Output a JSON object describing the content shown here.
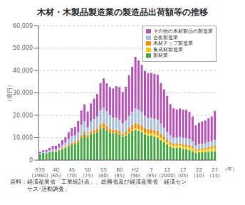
{
  "chart_data": {
    "type": "bar",
    "title": "木材・木製品製造業の製造品出荷額等の推移",
    "ylabel": "（億円）",
    "xlabel": "（年）",
    "annotations": [
      "資料：経済産業省「工業統計表」、総務省及び経済産業省「経済セン\n　　　サス･活動調査」"
    ],
    "stacked": true,
    "grid": true,
    "legend": "upper right",
    "categories": [
      "S35\n(1960)",
      null,
      null,
      null,
      null,
      "40\n(65)",
      null,
      null,
      null,
      null,
      "45\n(70)",
      null,
      null,
      null,
      null,
      "50\n(75)",
      null,
      null,
      null,
      null,
      "55\n(80)",
      null,
      null,
      null,
      null,
      "60\n(85)",
      null,
      null,
      null,
      null,
      "H2\n(90)",
      null,
      null,
      null,
      null,
      "7\n(95)",
      null,
      null,
      null,
      null,
      "12\n(2000)",
      null,
      null,
      null,
      null,
      "17\n(05)",
      null,
      null,
      null,
      null,
      "22\n(10)",
      null,
      null,
      null,
      null,
      "27\n(15)"
    ],
    "ylim": [
      0,
      60000
    ],
    "yticks": [
      0,
      {
        "value": 10000,
        "label": "10,000"
      },
      {
        "value": 20000,
        "label": "20,000"
      },
      {
        "value": 30000,
        "label": "30,000"
      },
      {
        "value": 40000,
        "label": "40,000"
      },
      {
        "value": 50000,
        "label": "50,000"
      },
      {
        "value": 60000,
        "label": "60,000"
      }
    ],
    "series": [
      {
        "name": "製材業",
        "color": "#44aa44",
        "values": [
          2800,
          3200,
          3100,
          3500,
          3800,
          3700,
          4100,
          4800,
          5300,
          6200,
          7000,
          7200,
          8000,
          10000,
          11500,
          10000,
          11500,
          12000,
          12500,
          14000,
          14500,
          13500,
          12500,
          12000,
          12000,
          11500,
          10500,
          11000,
          12000,
          13000,
          13500,
          13000,
          12500,
          11500,
          11000,
          11000,
          10500,
          10000,
          9000,
          8000,
          7000,
          6000,
          5500,
          5500,
          5500,
          5000,
          4800,
          4500,
          4000,
          3200,
          3500,
          3500,
          3500,
          3800,
          3800,
          4000
        ]
      },
      {
        "name": "集成材製造業",
        "color": "#ffcc00",
        "values": [
          0,
          0,
          0,
          0,
          0,
          0,
          0,
          0,
          0,
          0,
          0,
          0,
          0,
          0,
          0,
          0,
          0,
          0,
          0,
          0,
          0,
          0,
          0,
          0,
          0,
          100,
          150,
          200,
          300,
          400,
          600,
          700,
          800,
          800,
          800,
          900,
          1000,
          1100,
          1100,
          1000,
          1000,
          1000,
          1000,
          1000,
          1100,
          1100,
          1100,
          1200,
          1200,
          900,
          1000,
          1100,
          1200,
          1300,
          1400,
          1500
        ]
      },
      {
        "name": "木材チップ製造業",
        "color": "#ff8c00",
        "values": [
          0,
          0,
          0,
          100,
          200,
          300,
          400,
          500,
          600,
          700,
          800,
          900,
          1000,
          1200,
          1400,
          1200,
          1300,
          1400,
          1500,
          1800,
          2000,
          1800,
          1600,
          1500,
          1500,
          1500,
          1200,
          1500,
          2000,
          2200,
          2500,
          2300,
          2200,
          2000,
          2000,
          2000,
          2000,
          2000,
          1800,
          1500,
          1200,
          1000,
          800,
          800,
          900,
          900,
          1000,
          1000,
          800,
          600,
          700,
          700,
          800,
          800,
          900,
          1000
        ]
      },
      {
        "name": "合板製造業",
        "color": "#aac0dd",
        "values": [
          300,
          400,
          500,
          700,
          900,
          900,
          1100,
          1500,
          1900,
          2500,
          3000,
          3000,
          3500,
          4500,
          4500,
          3500,
          4500,
          5000,
          5500,
          6500,
          7000,
          6500,
          6000,
          5500,
          5500,
          5000,
          4500,
          5000,
          5500,
          6000,
          6500,
          6500,
          6000,
          5500,
          5000,
          5000,
          5000,
          5000,
          4500,
          4000,
          3500,
          3000,
          2800,
          2800,
          3000,
          3000,
          3000,
          2800,
          2500,
          1800,
          2000,
          2000,
          2200,
          2300,
          2400,
          2500
        ]
      },
      {
        "name": "その他の木材製品の製造業",
        "color": "#bb55bb",
        "values": [
          700,
          800,
          1000,
          1200,
          1400,
          1500,
          1800,
          2100,
          2500,
          3000,
          3500,
          3800,
          5000,
          6500,
          7500,
          7000,
          8000,
          9000,
          10000,
          12000,
          13000,
          12500,
          12500,
          13000,
          14000,
          14500,
          14000,
          15000,
          18000,
          20000,
          23000,
          22000,
          21000,
          20000,
          20000,
          20000,
          20000,
          20000,
          18000,
          17000,
          16000,
          14000,
          13000,
          12500,
          12500,
          12500,
          12500,
          12000,
          11000,
          9000,
          9500,
          10000,
          10000,
          10500,
          11000,
          13000
        ]
      }
    ]
  }
}
